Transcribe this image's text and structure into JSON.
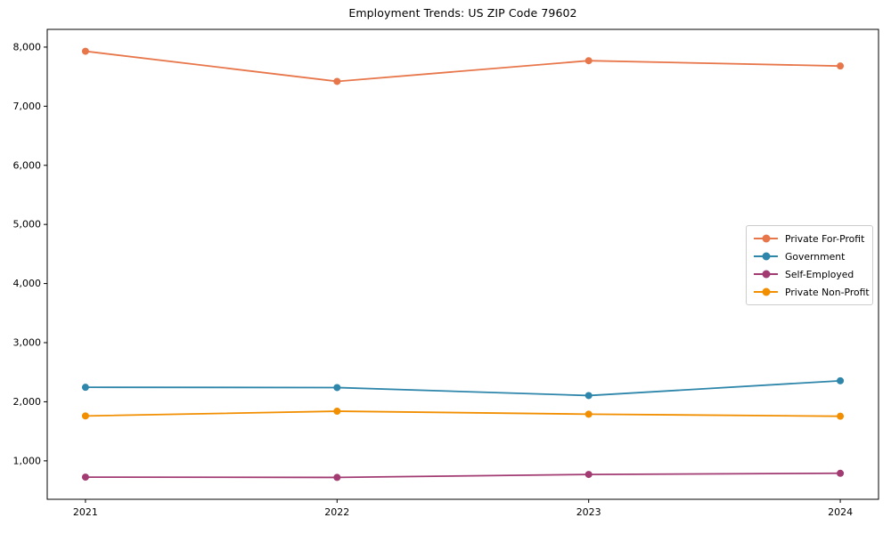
{
  "figure": {
    "background": "#ffffff",
    "axis_color": "#000000",
    "tick_label_color": "#000000",
    "legend_border_color": "#cccccc"
  },
  "chart_data": {
    "type": "line",
    "title": "Employment Trends: US ZIP Code 79602",
    "x": [
      "2021",
      "2022",
      "2023",
      "2024"
    ],
    "series": [
      {
        "name": "Private For-Profit",
        "color": "#E8764B",
        "values": [
          7930,
          7420,
          7770,
          7680
        ]
      },
      {
        "name": "Government",
        "color": "#2E86AB",
        "values": [
          2245,
          2240,
          2105,
          2355
        ]
      },
      {
        "name": "Self-Employed",
        "color": "#A23B72",
        "values": [
          725,
          720,
          770,
          790
        ]
      },
      {
        "name": "Private Non-Profit",
        "color": "#F18F01",
        "values": [
          1760,
          1840,
          1790,
          1755
        ]
      }
    ],
    "xlabel": "",
    "ylabel": "",
    "ylim": [
      350,
      8300
    ],
    "yticks": [
      1000,
      2000,
      3000,
      4000,
      5000,
      6000,
      7000,
      8000
    ],
    "ytick_format": "comma",
    "grid": false,
    "legend_position": "center-right",
    "marker": "circle",
    "line_width": 1.8,
    "marker_radius": 4
  }
}
